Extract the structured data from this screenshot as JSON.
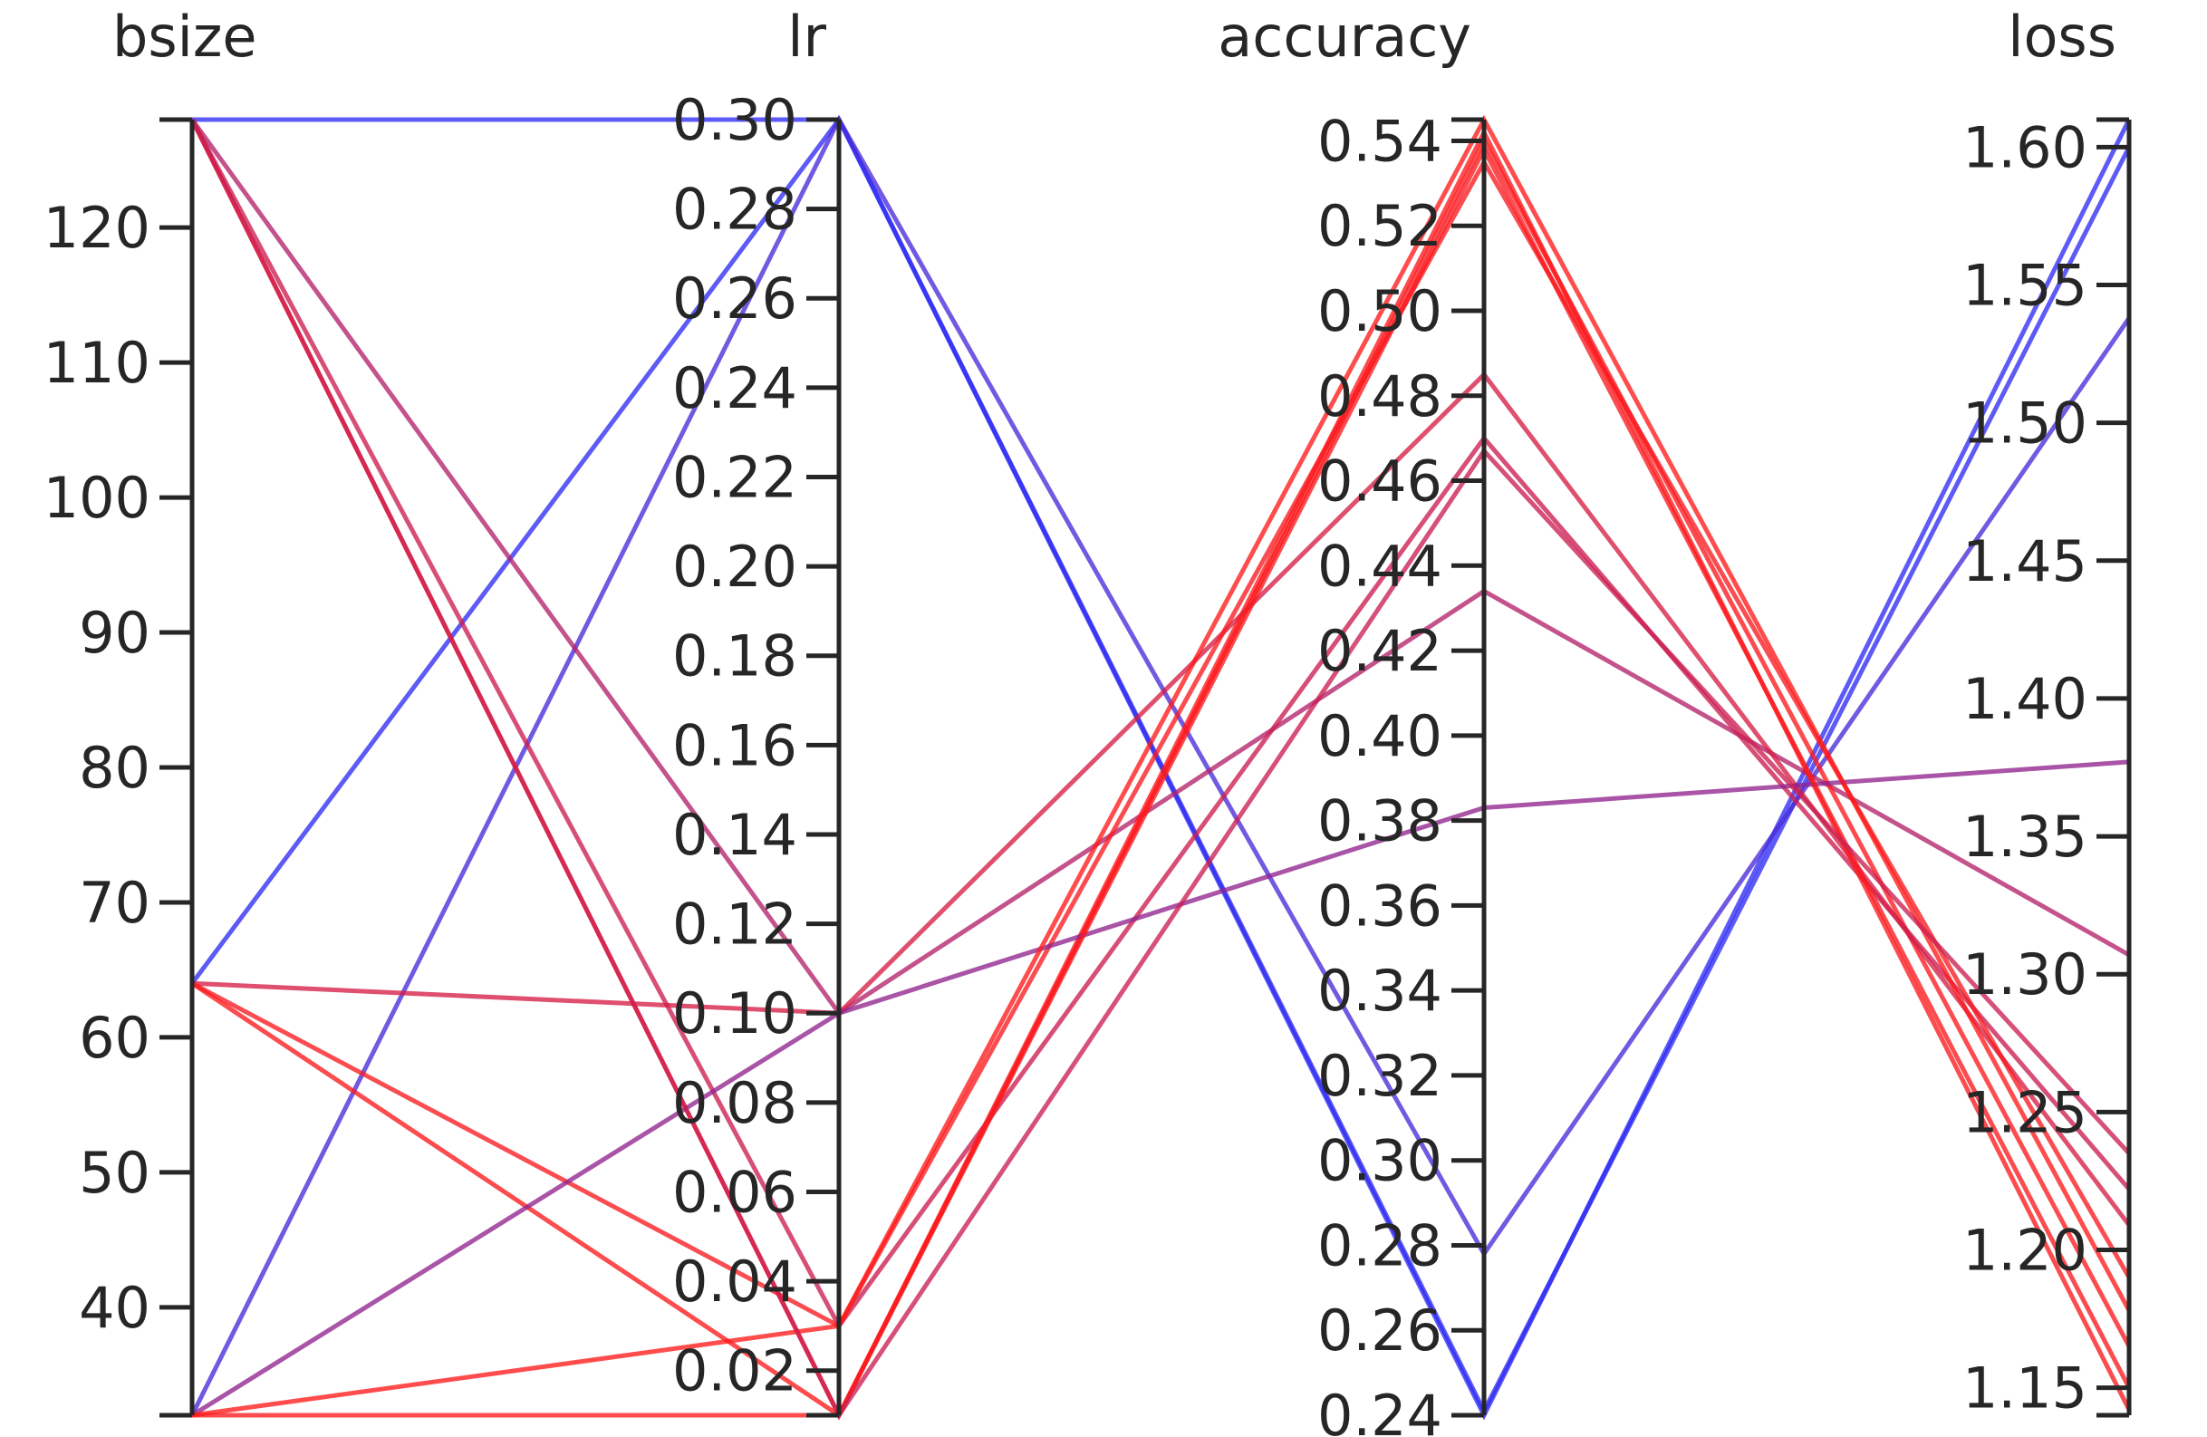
{
  "chart_data": {
    "type": "parallel_coordinates",
    "axes": [
      {
        "name": "bsize",
        "range": [
          32,
          128
        ],
        "ticks": [
          40,
          50,
          60,
          70,
          80,
          90,
          100,
          110,
          120
        ]
      },
      {
        "name": "lr",
        "range": [
          0.01,
          0.3
        ],
        "ticks": [
          0.02,
          0.04,
          0.06,
          0.08,
          0.1,
          0.12,
          0.14,
          0.16,
          0.18,
          0.2,
          0.22,
          0.24,
          0.26,
          0.28,
          0.3
        ]
      },
      {
        "name": "accuracy",
        "range": [
          0.24,
          0.545
        ],
        "ticks": [
          0.24,
          0.26,
          0.28,
          0.3,
          0.32,
          0.34,
          0.36,
          0.38,
          0.4,
          0.42,
          0.44,
          0.46,
          0.48,
          0.5,
          0.52,
          0.54
        ]
      },
      {
        "name": "loss",
        "range": [
          1.14,
          1.61
        ],
        "ticks": [
          1.15,
          1.2,
          1.25,
          1.3,
          1.35,
          1.4,
          1.45,
          1.5,
          1.55,
          1.6
        ]
      }
    ],
    "tick_formats": [
      "0",
      "2",
      "2",
      "2"
    ],
    "color_scale": {
      "by": "accuracy",
      "low": "#2f2cf5",
      "high": "#ff1a1a"
    },
    "lines": [
      {
        "bsize": 128,
        "lr": 0.3,
        "accuracy": 0.24,
        "loss": 1.61
      },
      {
        "bsize": 64,
        "lr": 0.3,
        "accuracy": 0.241,
        "loss": 1.6
      },
      {
        "bsize": 32,
        "lr": 0.3,
        "accuracy": 0.278,
        "loss": 1.538
      },
      {
        "bsize": 128,
        "lr": 0.1,
        "accuracy": 0.434,
        "loss": 1.307
      },
      {
        "bsize": 128,
        "lr": 0.01,
        "accuracy": 0.54,
        "loss": 1.165
      },
      {
        "bsize": 128,
        "lr": 0.03,
        "accuracy": 0.47,
        "loss": 1.222
      },
      {
        "bsize": 64,
        "lr": 0.1,
        "accuracy": 0.485,
        "loss": 1.209
      },
      {
        "bsize": 64,
        "lr": 0.03,
        "accuracy": 0.535,
        "loss": 1.19
      },
      {
        "bsize": 64,
        "lr": 0.01,
        "accuracy": 0.542,
        "loss": 1.142
      },
      {
        "bsize": 32,
        "lr": 0.1,
        "accuracy": 0.383,
        "loss": 1.377
      },
      {
        "bsize": 32,
        "lr": 0.03,
        "accuracy": 0.545,
        "loss": 1.178
      },
      {
        "bsize": 32,
        "lr": 0.01,
        "accuracy": 0.538,
        "loss": 1.15
      },
      {
        "bsize": 128,
        "lr": 0.01,
        "accuracy": 0.467,
        "loss": 1.235
      }
    ]
  }
}
